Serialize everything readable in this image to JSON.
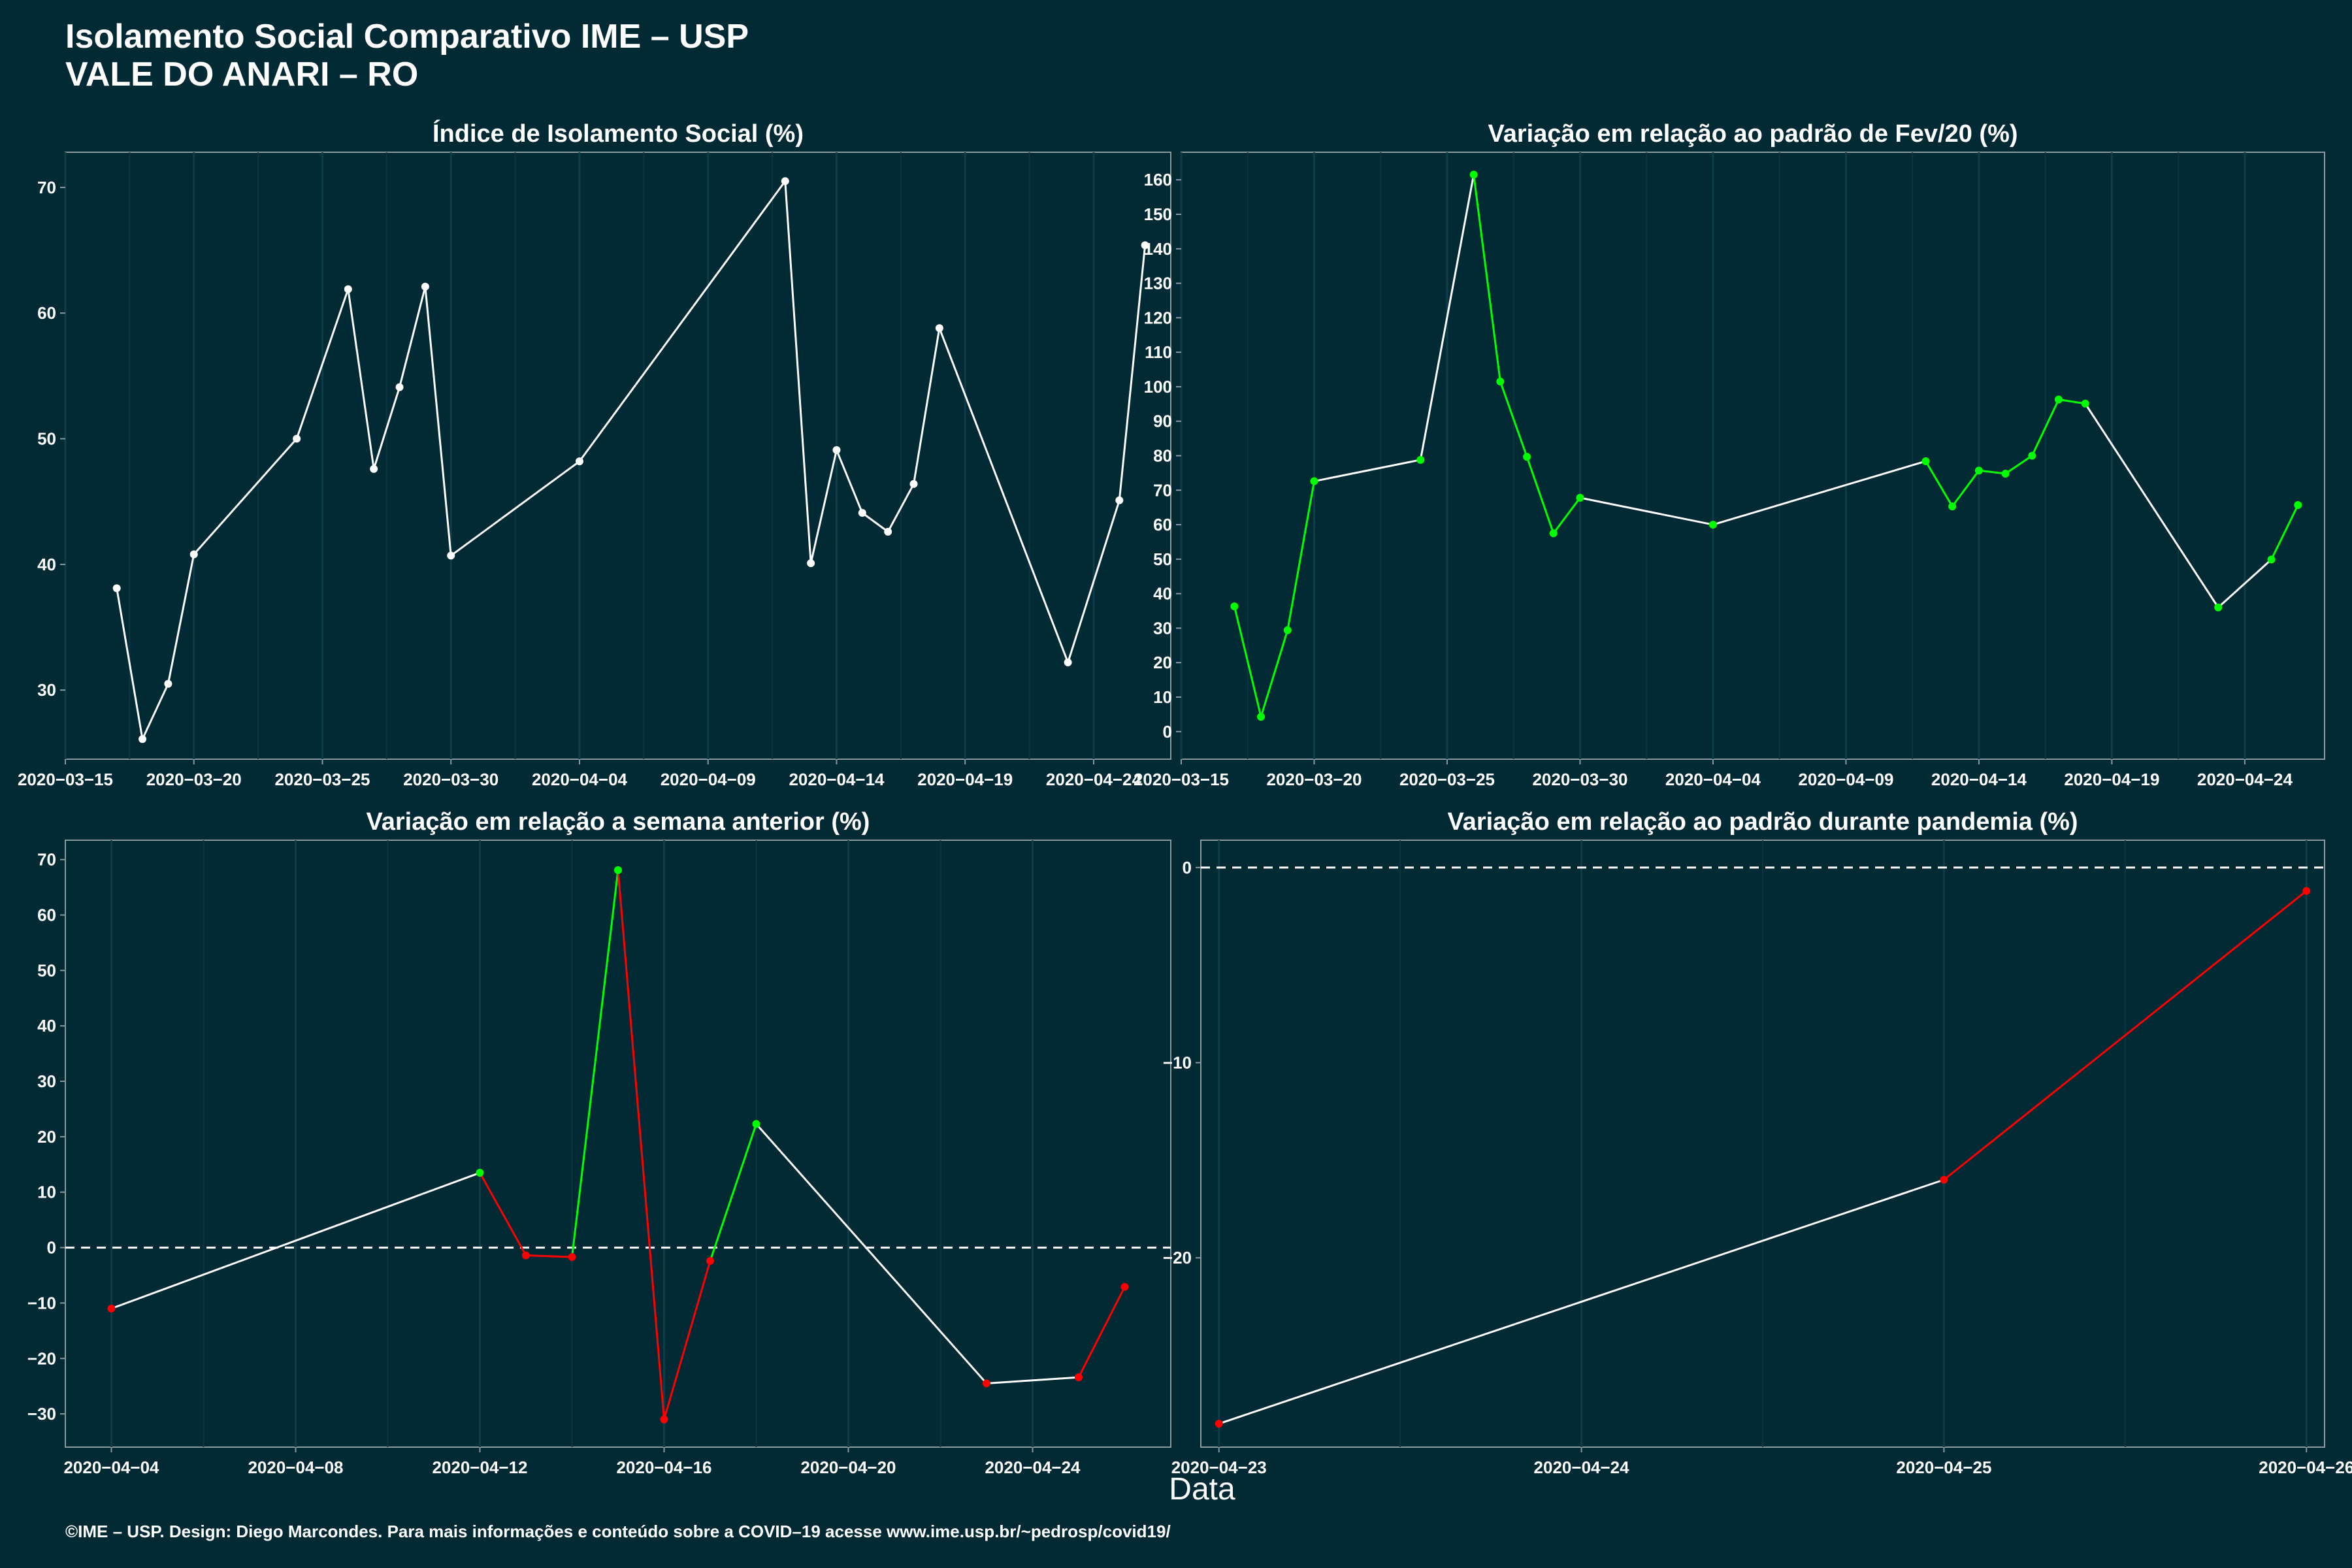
{
  "header": {
    "title_line1": "Isolamento Social Comparativo IME – USP",
    "title_line2": "VALE DO ANARI – RO"
  },
  "xlabel": "Data",
  "footer": "©IME – USP. Design: Diego Marcondes. Para mais informações e conteúdo sobre a COVID–19 acesse www.ime.usp.br/~pedrosp/covid19/",
  "colors": {
    "background": "#022a35",
    "text": "#ffffff",
    "increase": "#00ff00",
    "decrease": "#ff0000",
    "neutral_line": "#ffffff"
  },
  "chart_data": [
    {
      "type": "line",
      "title": "Índice de Isolamento Social (%)",
      "x_type": "date",
      "xlim": [
        "2020-03-15",
        "2020-04-27"
      ],
      "ylim": [
        24.5,
        72.8
      ],
      "x_ticks": [
        "2020-03-15",
        "2020-03-20",
        "2020-03-25",
        "2020-03-30",
        "2020-04-04",
        "2020-04-09",
        "2020-04-14",
        "2020-04-19",
        "2020-04-24"
      ],
      "y_ticks": [
        30,
        40,
        50,
        60,
        70
      ],
      "hline": null,
      "series": [
        {
          "x": [
            "2020-03-17",
            "2020-03-18",
            "2020-03-19",
            "2020-03-20",
            "2020-03-24",
            "2020-03-26",
            "2020-03-27",
            "2020-03-28",
            "2020-03-29",
            "2020-03-30",
            "2020-04-04",
            "2020-04-12",
            "2020-04-13",
            "2020-04-14",
            "2020-04-15",
            "2020-04-16",
            "2020-04-17",
            "2020-04-18",
            "2020-04-23",
            "2020-04-25",
            "2020-04-26"
          ],
          "y": [
            38.1,
            26.1,
            30.5,
            40.8,
            50.0,
            61.9,
            47.6,
            54.1,
            62.1,
            40.7,
            48.2,
            70.5,
            40.1,
            49.1,
            44.1,
            42.6,
            46.4,
            58.8,
            32.2,
            45.1,
            65.4
          ],
          "segment_colors": [
            "#ffffff",
            "#ffffff",
            "#ffffff",
            "#ffffff",
            "#ffffff",
            "#ffffff",
            "#ffffff",
            "#ffffff",
            "#ffffff",
            "#ffffff",
            "#ffffff",
            "#ffffff",
            "#ffffff",
            "#ffffff",
            "#ffffff",
            "#ffffff",
            "#ffffff",
            "#ffffff",
            "#ffffff",
            "#ffffff"
          ],
          "point_colors": [
            "#ffffff",
            "#ffffff",
            "#ffffff",
            "#ffffff",
            "#ffffff",
            "#ffffff",
            "#ffffff",
            "#ffffff",
            "#ffffff",
            "#ffffff",
            "#ffffff",
            "#ffffff",
            "#ffffff",
            "#ffffff",
            "#ffffff",
            "#ffffff",
            "#ffffff",
            "#ffffff",
            "#ffffff",
            "#ffffff",
            "#ffffff"
          ]
        }
      ]
    },
    {
      "type": "line",
      "title": "Variação em relação ao padrão de Fev/20 (%)",
      "x_type": "date",
      "xlim": [
        "2020-03-15",
        "2020-04-27"
      ],
      "ylim": [
        -8,
        168
      ],
      "x_ticks": [
        "2020-03-15",
        "2020-03-20",
        "2020-03-25",
        "2020-03-30",
        "2020-04-04",
        "2020-04-09",
        "2020-04-14",
        "2020-04-19",
        "2020-04-24"
      ],
      "y_ticks": [
        0,
        10,
        20,
        30,
        40,
        50,
        60,
        70,
        80,
        90,
        100,
        110,
        120,
        130,
        140,
        150,
        160
      ],
      "hline": null,
      "series": [
        {
          "x": [
            "2020-03-17",
            "2020-03-18",
            "2020-03-19",
            "2020-03-20",
            "2020-03-24",
            "2020-03-26",
            "2020-03-27",
            "2020-03-28",
            "2020-03-29",
            "2020-03-30",
            "2020-04-04",
            "2020-04-12",
            "2020-04-13",
            "2020-04-14",
            "2020-04-15",
            "2020-04-16",
            "2020-04-17",
            "2020-04-18",
            "2020-04-23",
            "2020-04-25",
            "2020-04-26"
          ],
          "y": [
            36.3,
            4.3,
            29.4,
            72.6,
            78.8,
            161.5,
            101.5,
            79.7,
            57.5,
            67.8,
            60.0,
            78.4,
            65.3,
            75.7,
            74.8,
            80.0,
            96.3,
            95.1,
            36.0,
            49.9,
            65.7
          ],
          "segment_colors": [
            "#00ff00",
            "#00ff00",
            "#00ff00",
            "#ffffff",
            "#ffffff",
            "#00ff00",
            "#00ff00",
            "#00ff00",
            "#00ff00",
            "#ffffff",
            "#ffffff",
            "#00ff00",
            "#00ff00",
            "#00ff00",
            "#00ff00",
            "#00ff00",
            "#00ff00",
            "#ffffff",
            "#ffffff",
            "#00ff00"
          ],
          "point_colors": [
            "#00ff00",
            "#00ff00",
            "#00ff00",
            "#00ff00",
            "#00ff00",
            "#00ff00",
            "#00ff00",
            "#00ff00",
            "#00ff00",
            "#00ff00",
            "#00ff00",
            "#00ff00",
            "#00ff00",
            "#00ff00",
            "#00ff00",
            "#00ff00",
            "#00ff00",
            "#00ff00",
            "#00ff00",
            "#00ff00",
            "#00ff00"
          ]
        }
      ]
    },
    {
      "type": "line",
      "title": "Variação em relação a semana anterior (%)",
      "x_type": "date",
      "xlim": [
        "2020-04-03",
        "2020-04-27"
      ],
      "ylim": [
        -36,
        73.5
      ],
      "x_ticks": [
        "2020-04-04",
        "2020-04-08",
        "2020-04-12",
        "2020-04-16",
        "2020-04-20",
        "2020-04-24"
      ],
      "y_ticks": [
        -30,
        -20,
        -10,
        0,
        10,
        20,
        30,
        40,
        50,
        60,
        70
      ],
      "hline": 0,
      "series": [
        {
          "x": [
            "2020-04-04",
            "2020-04-12",
            "2020-04-13",
            "2020-04-14",
            "2020-04-15",
            "2020-04-16",
            "2020-04-17",
            "2020-04-18",
            "2020-04-23",
            "2020-04-25",
            "2020-04-26"
          ],
          "y": [
            -11.0,
            13.5,
            -1.4,
            -1.7,
            68.1,
            -31.0,
            -2.4,
            22.3,
            -24.5,
            -23.4,
            -7.1
          ],
          "segment_colors": [
            "#ffffff",
            "#ff0000",
            "#ff0000",
            "#00ff00",
            "#ff0000",
            "#ff0000",
            "#00ff00",
            "#ffffff",
            "#ffffff",
            "#ff0000"
          ],
          "point_colors": [
            "#ff0000",
            "#00ff00",
            "#ff0000",
            "#ff0000",
            "#00ff00",
            "#ff0000",
            "#ff0000",
            "#00ff00",
            "#ff0000",
            "#ff0000",
            "#ff0000"
          ]
        }
      ]
    },
    {
      "type": "line",
      "title": "Variação em relação ao padrão durante pandemia (%)",
      "x_type": "date",
      "xlim": [
        "2020-04-22.95",
        "2020-04-26.05"
      ],
      "ylim": [
        -29.7,
        1.4
      ],
      "x_ticks": [
        "2020-04-23",
        "2020-04-24",
        "2020-04-25",
        "2020-04-26"
      ],
      "y_ticks": [
        -20,
        -10,
        0
      ],
      "hline": 0,
      "series": [
        {
          "x": [
            "2020-04-23",
            "2020-04-25",
            "2020-04-26"
          ],
          "y": [
            -28.5,
            -16.0,
            -1.2
          ],
          "segment_colors": [
            "#ffffff",
            "#ff0000"
          ],
          "point_colors": [
            "#ff0000",
            "#ff0000",
            "#ff0000"
          ]
        }
      ]
    }
  ]
}
